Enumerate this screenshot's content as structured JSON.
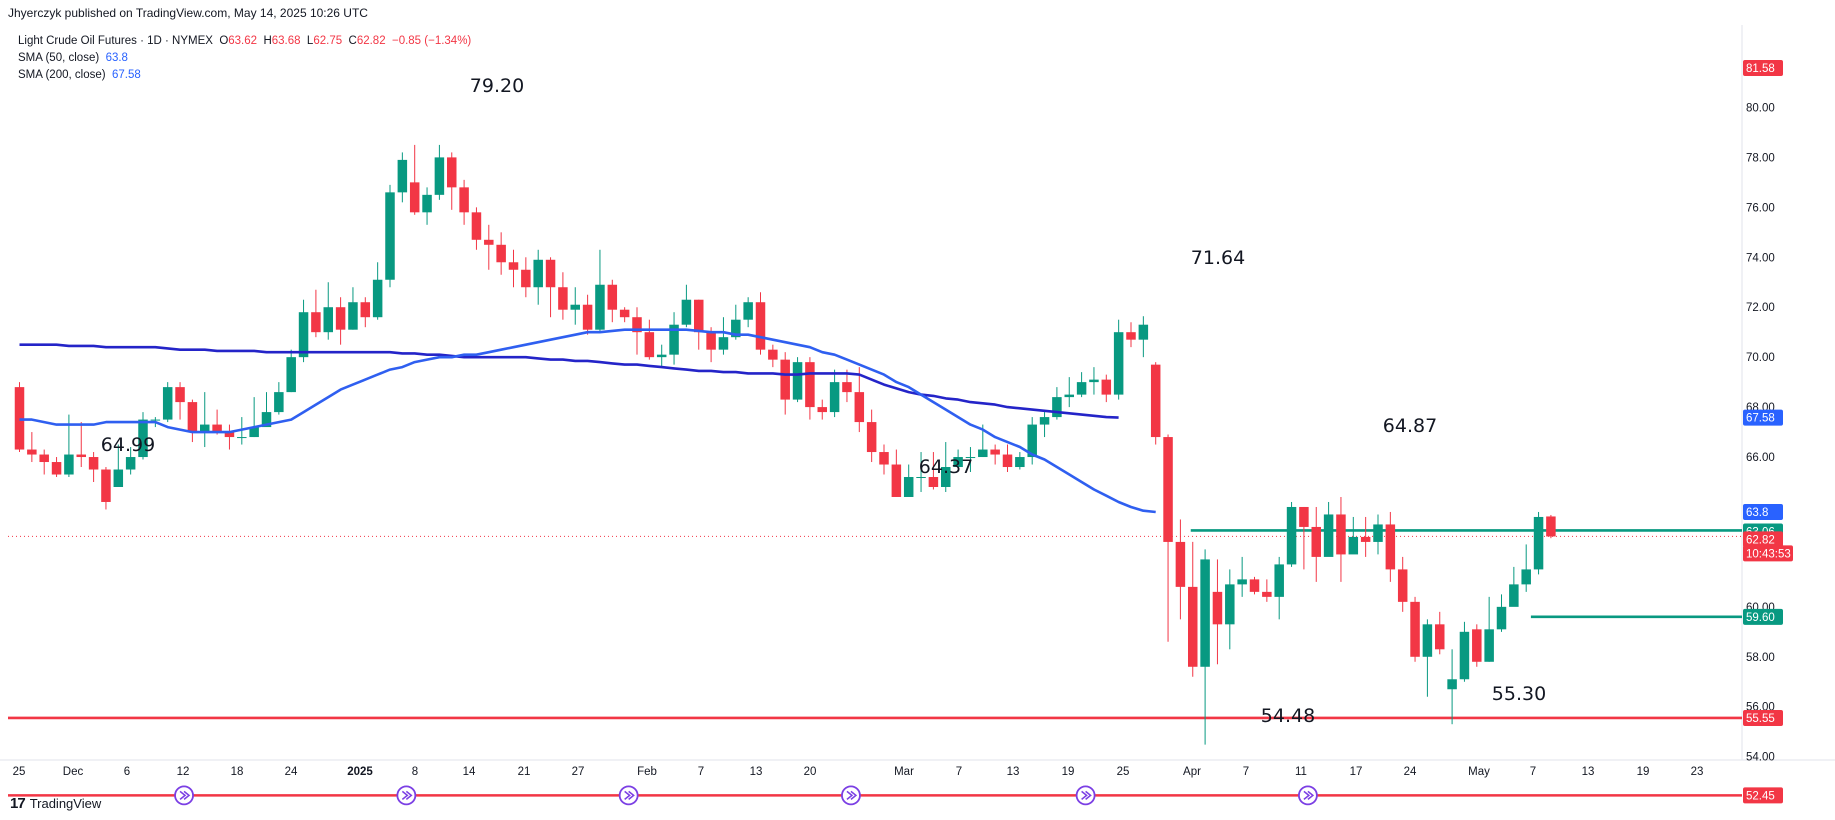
{
  "header": {
    "publisher": "Jhyerczyk published on TradingView.com, May 14, 2025 10:26 UTC"
  },
  "legend": {
    "symbol": "Light Crude Oil Futures · 1D · NYMEX",
    "o_label": "O",
    "o": "63.62",
    "h_label": "H",
    "h": "63.68",
    "l_label": "L",
    "l": "62.75",
    "c_label": "C",
    "c": "62.82",
    "change": "−0.85 (−1.34%)",
    "sma50_label": "SMA (50, close)",
    "sma50_value": "63.8",
    "sma200_label": "SMA (200, close)",
    "sma200_value": "67.58"
  },
  "brand": {
    "name": "TradingView"
  },
  "chart_data": {
    "type": "candlestick",
    "grid": false,
    "ylim": [
      53,
      82
    ],
    "y_ticks": [
      "54.00",
      "56.00",
      "58.00",
      "60.00",
      "62.00",
      "66.00",
      "68.00",
      "70.00",
      "72.00",
      "74.00",
      "76.00",
      "78.00",
      "80.00"
    ],
    "x_ticks": [
      "25",
      "Dec",
      "6",
      "12",
      "18",
      "24",
      "2025",
      "8",
      "14",
      "21",
      "27",
      "Feb",
      "7",
      "13",
      "20",
      "Mar",
      "7",
      "13",
      "19",
      "25",
      "Apr",
      "7",
      "11",
      "17",
      "24",
      "May",
      "7",
      "13",
      "19",
      "23"
    ],
    "annotations": [
      "64.99",
      "79.20",
      "64.37",
      "71.64",
      "64.87",
      "54.48",
      "55.30"
    ],
    "price_tags": [
      {
        "label": "81.58",
        "value": 81.58,
        "color": "#f23645"
      },
      {
        "label": "67.58",
        "value": 67.58,
        "color": "#2962ff"
      },
      {
        "label": "63.8",
        "value": 63.8,
        "color": "#2962ff"
      },
      {
        "label": "63.06",
        "value": 63.06,
        "color": "#089981"
      },
      {
        "label": "62.82",
        "value": 62.82,
        "color": "#f23645"
      },
      {
        "label": "10:43:53",
        "value": 62.82,
        "color": "#f23645"
      },
      {
        "label": "59.60",
        "value": 59.6,
        "color": "#089981"
      },
      {
        "label": "55.55",
        "value": 55.55,
        "color": "#f23645"
      },
      {
        "label": "52.45",
        "value": 52.45,
        "color": "#f23645"
      }
    ],
    "horizontal_lines": [
      {
        "value": 55.55,
        "color": "#f23645",
        "from": "start"
      },
      {
        "value": 52.45,
        "color": "#f23645",
        "from": "start"
      },
      {
        "value": 63.06,
        "color": "#089981",
        "from": "Apr 10"
      },
      {
        "value": 59.6,
        "color": "#089981",
        "from": "May 14"
      },
      {
        "value": 62.82,
        "color": "#f23645",
        "from": "start",
        "dotted": true
      }
    ],
    "sma50": [
      67.5,
      67.5,
      67.4,
      67.3,
      67.3,
      67.3,
      67.3,
      67.4,
      67.4,
      67.4,
      67.4,
      67.4,
      67.2,
      67.1,
      67.0,
      67.0,
      67.0,
      67.0,
      67.1,
      67.2,
      67.3,
      67.4,
      67.5,
      67.8,
      68.1,
      68.4,
      68.7,
      68.9,
      69.1,
      69.3,
      69.5,
      69.6,
      69.8,
      69.9,
      70.0,
      70.0,
      70.1,
      70.1,
      70.2,
      70.3,
      70.4,
      70.5,
      70.6,
      70.7,
      70.8,
      70.9,
      71.0,
      71.0,
      71.05,
      71.1,
      71.1,
      71.1,
      71.1,
      71.1,
      71.1,
      71.05,
      71.0,
      71.0,
      70.9,
      70.9,
      70.8,
      70.7,
      70.6,
      70.5,
      70.4,
      70.2,
      70.1,
      69.9,
      69.7,
      69.5,
      69.3,
      69.0,
      68.8,
      68.5,
      68.2,
      67.9,
      67.6,
      67.3,
      67.1,
      66.8,
      66.6,
      66.4,
      66.1,
      65.9,
      65.6,
      65.3,
      65.0,
      64.7,
      64.45,
      64.2,
      64.0,
      63.85,
      63.8
    ],
    "sma200": [
      70.5,
      70.5,
      70.5,
      70.5,
      70.45,
      70.45,
      70.45,
      70.4,
      70.4,
      70.4,
      70.4,
      70.4,
      70.35,
      70.3,
      70.3,
      70.3,
      70.25,
      70.25,
      70.25,
      70.25,
      70.2,
      70.2,
      70.2,
      70.2,
      70.2,
      70.2,
      70.2,
      70.2,
      70.2,
      70.2,
      70.2,
      70.15,
      70.15,
      70.1,
      70.1,
      70.05,
      70.0,
      70.0,
      70.0,
      70.0,
      70.0,
      70.0,
      69.95,
      69.9,
      69.9,
      69.85,
      69.85,
      69.8,
      69.75,
      69.7,
      69.7,
      69.65,
      69.6,
      69.55,
      69.5,
      69.45,
      69.45,
      69.4,
      69.4,
      69.35,
      69.35,
      69.35,
      69.3,
      69.3,
      69.35,
      69.35,
      69.35,
      69.35,
      69.3,
      69.1,
      68.9,
      68.75,
      68.6,
      68.5,
      68.45,
      68.35,
      68.3,
      68.2,
      68.15,
      68.1,
      68.0,
      67.95,
      67.9,
      67.85,
      67.8,
      67.75,
      67.7,
      67.65,
      67.6,
      67.58
    ],
    "candles": [
      [
        68.8,
        66.3,
        69.0,
        66.2
      ],
      [
        66.3,
        66.1,
        67.0,
        65.8
      ],
      [
        66.1,
        65.8,
        66.3,
        65.3
      ],
      [
        65.8,
        65.3,
        66.0,
        65.2
      ],
      [
        65.3,
        66.1,
        67.7,
        65.2
      ],
      [
        66.1,
        66.0,
        67.4,
        65.6
      ],
      [
        66.0,
        65.5,
        66.2,
        65.0
      ],
      [
        65.5,
        64.2,
        65.6,
        63.9
      ],
      [
        64.8,
        65.5,
        66.5,
        64.9
      ],
      [
        65.5,
        66.0,
        66.4,
        65.3
      ],
      [
        66.0,
        67.5,
        67.8,
        65.9
      ],
      [
        67.5,
        67.5,
        67.6,
        67.2
      ],
      [
        67.5,
        68.8,
        69.0,
        67.4
      ],
      [
        68.8,
        68.2,
        69.0,
        67.5
      ],
      [
        68.2,
        67.0,
        68.3,
        66.6
      ],
      [
        67.0,
        67.3,
        68.6,
        66.4
      ],
      [
        67.3,
        67.0,
        67.9,
        66.9
      ],
      [
        67.0,
        66.8,
        67.3,
        66.3
      ],
      [
        66.8,
        66.8,
        67.6,
        66.5
      ],
      [
        66.8,
        67.2,
        68.4,
        66.8
      ],
      [
        67.2,
        67.8,
        68.6,
        67.3
      ],
      [
        67.8,
        68.6,
        69.0,
        67.7
      ],
      [
        68.6,
        70.0,
        70.3,
        68.6
      ],
      [
        70.0,
        71.8,
        72.3,
        69.8
      ],
      [
        71.8,
        71.0,
        72.7,
        70.8
      ],
      [
        71.0,
        72.0,
        73.0,
        70.7
      ],
      [
        72.0,
        71.1,
        72.4,
        70.5
      ],
      [
        71.1,
        72.2,
        72.8,
        71.1
      ],
      [
        72.2,
        71.6,
        72.4,
        71.2
      ],
      [
        71.6,
        73.1,
        73.8,
        71.5
      ],
      [
        73.1,
        76.6,
        76.9,
        72.8
      ],
      [
        76.6,
        77.9,
        78.2,
        76.2
      ],
      [
        77.0,
        75.8,
        78.5,
        75.7
      ],
      [
        75.8,
        76.5,
        76.8,
        75.3
      ],
      [
        76.5,
        78.0,
        78.5,
        76.3
      ],
      [
        78.0,
        76.8,
        78.2,
        75.9
      ],
      [
        76.8,
        75.8,
        77.1,
        75.3
      ],
      [
        75.8,
        74.7,
        76.0,
        74.3
      ],
      [
        74.7,
        74.5,
        75.3,
        73.5
      ],
      [
        74.5,
        73.8,
        75.0,
        73.3
      ],
      [
        73.8,
        73.5,
        74.3,
        72.8
      ],
      [
        73.5,
        72.8,
        74.0,
        72.4
      ],
      [
        72.8,
        73.9,
        74.3,
        72.1
      ],
      [
        73.9,
        72.8,
        74.0,
        71.6
      ],
      [
        72.8,
        71.9,
        73.4,
        71.5
      ],
      [
        71.9,
        72.1,
        72.8,
        71.3
      ],
      [
        72.1,
        71.1,
        72.5,
        70.9
      ],
      [
        71.1,
        72.9,
        74.3,
        71.0
      ],
      [
        72.9,
        71.9,
        73.1,
        71.4
      ],
      [
        71.9,
        71.6,
        72.0,
        71.4
      ],
      [
        71.6,
        71.0,
        72.0,
        70.1
      ],
      [
        71.0,
        70.0,
        71.5,
        69.9
      ],
      [
        70.0,
        70.1,
        70.5,
        69.6
      ],
      [
        70.1,
        71.3,
        71.8,
        69.7
      ],
      [
        71.3,
        72.3,
        72.9,
        71.2
      ],
      [
        72.3,
        71.0,
        72.3,
        70.3
      ],
      [
        71.0,
        70.3,
        71.2,
        69.8
      ],
      [
        70.3,
        70.8,
        71.6,
        70.1
      ],
      [
        70.8,
        71.5,
        72.1,
        70.7
      ],
      [
        71.5,
        72.2,
        72.4,
        71.2
      ],
      [
        72.2,
        70.3,
        72.6,
        70.1
      ],
      [
        70.3,
        69.9,
        70.5,
        69.6
      ],
      [
        69.9,
        68.3,
        70.2,
        67.7
      ],
      [
        68.3,
        69.8,
        70.0,
        68.2
      ],
      [
        69.8,
        68.0,
        70.0,
        67.5
      ],
      [
        68.0,
        67.8,
        68.3,
        67.5
      ],
      [
        67.8,
        69.0,
        69.5,
        67.6
      ],
      [
        69.0,
        68.6,
        69.5,
        68.2
      ],
      [
        68.6,
        67.4,
        69.6,
        67.0
      ],
      [
        67.4,
        66.2,
        67.9,
        65.8
      ],
      [
        66.2,
        65.7,
        66.5,
        65.3
      ],
      [
        65.7,
        64.4,
        66.3,
        64.4
      ],
      [
        64.4,
        65.2,
        65.7,
        64.8
      ],
      [
        65.2,
        65.2,
        66.2,
        64.6
      ],
      [
        65.2,
        64.8,
        66.2,
        64.7
      ],
      [
        64.8,
        65.6,
        66.6,
        64.6
      ],
      [
        65.6,
        66.0,
        66.3,
        65.6
      ],
      [
        66.0,
        66.0,
        66.4,
        65.4
      ],
      [
        66.0,
        66.3,
        67.3,
        66.0
      ],
      [
        66.3,
        66.1,
        66.5,
        65.7
      ],
      [
        66.1,
        65.6,
        66.5,
        65.4
      ],
      [
        65.6,
        66.0,
        66.2,
        65.5
      ],
      [
        66.0,
        67.3,
        67.6,
        65.7
      ],
      [
        67.3,
        67.6,
        67.8,
        66.8
      ],
      [
        67.6,
        68.4,
        68.8,
        67.5
      ],
      [
        68.4,
        68.5,
        69.2,
        68.0
      ],
      [
        68.5,
        69.0,
        69.4,
        68.4
      ],
      [
        69.0,
        69.1,
        69.6,
        68.5
      ],
      [
        69.1,
        68.5,
        69.3,
        68.2
      ],
      [
        68.5,
        71.0,
        71.5,
        68.3
      ],
      [
        71.0,
        70.7,
        71.4,
        70.4
      ],
      [
        70.7,
        71.3,
        71.64,
        70.0
      ],
      [
        69.7,
        66.8,
        69.8,
        66.5
      ],
      [
        66.8,
        62.6,
        66.9,
        58.6
      ],
      [
        62.6,
        60.8,
        63.5,
        59.5
      ],
      [
        60.8,
        57.6,
        62.6,
        57.2
      ],
      [
        57.6,
        61.9,
        62.3,
        54.48
      ],
      [
        60.6,
        59.3,
        61.9,
        57.7
      ],
      [
        59.3,
        60.9,
        61.5,
        58.3
      ],
      [
        60.9,
        61.1,
        62.0,
        60.4
      ],
      [
        61.1,
        60.6,
        61.2,
        60.5
      ],
      [
        60.6,
        60.4,
        61.1,
        60.2
      ],
      [
        60.4,
        61.7,
        62.0,
        59.5
      ],
      [
        61.7,
        64.0,
        64.2,
        61.6
      ],
      [
        64.0,
        63.2,
        64.0,
        61.5
      ],
      [
        63.2,
        62.0,
        64.0,
        61.0
      ],
      [
        62.0,
        63.7,
        64.2,
        62.1
      ],
      [
        63.7,
        62.1,
        64.4,
        61.0
      ],
      [
        62.1,
        62.8,
        63.6,
        62.3
      ],
      [
        62.8,
        62.6,
        63.6,
        62.0
      ],
      [
        62.6,
        63.3,
        63.7,
        62.1
      ],
      [
        63.3,
        61.5,
        63.8,
        61.0
      ],
      [
        61.5,
        60.2,
        62.0,
        59.8
      ],
      [
        60.2,
        58.0,
        60.4,
        57.8
      ],
      [
        58.0,
        59.3,
        59.5,
        56.4
      ],
      [
        59.3,
        58.3,
        59.8,
        58.1
      ],
      [
        56.7,
        57.1,
        58.3,
        55.3
      ],
      [
        57.1,
        59.0,
        59.4,
        57.0
      ],
      [
        59.1,
        57.8,
        59.3,
        57.6
      ],
      [
        57.8,
        59.1,
        60.4,
        57.8
      ],
      [
        59.1,
        60.0,
        60.5,
        59.0
      ],
      [
        60.0,
        60.9,
        61.6,
        60.1
      ],
      [
        60.9,
        61.5,
        62.5,
        60.6
      ],
      [
        61.5,
        63.6,
        63.8,
        61.3
      ],
      [
        63.62,
        62.82,
        63.68,
        62.75
      ]
    ]
  }
}
